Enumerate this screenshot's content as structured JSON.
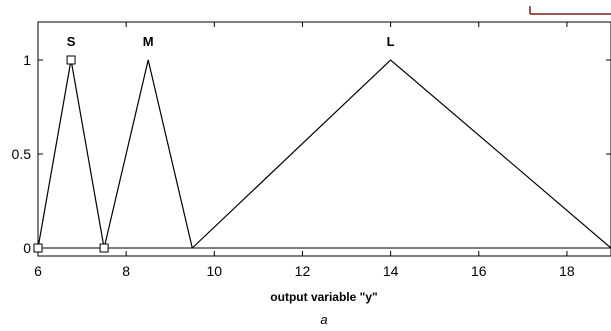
{
  "chart_data": {
    "type": "line",
    "xlabel": "output variable \"y\"",
    "ylabel": "",
    "xlim": [
      6,
      19
    ],
    "ylim": [
      -0.03,
      1.18
    ],
    "x_ticks": [
      6,
      8,
      10,
      12,
      14,
      16,
      18
    ],
    "y_ticks": [
      0,
      0.5,
      1
    ],
    "grid": false,
    "series": [
      {
        "name": "S",
        "x": [
          6,
          6.75,
          7.5
        ],
        "y": [
          0,
          1,
          0
        ]
      },
      {
        "name": "M",
        "x": [
          7.5,
          8.5,
          9.5
        ],
        "y": [
          0,
          1,
          0
        ]
      },
      {
        "name": "L",
        "x": [
          9.5,
          14,
          19
        ],
        "y": [
          0,
          1,
          0
        ]
      }
    ],
    "selected_points": [
      {
        "x": 6.75,
        "y": 1
      },
      {
        "x": 7.5,
        "y": 0
      },
      {
        "x": 6,
        "y": 0
      }
    ],
    "annotations": [],
    "line_color": "#000000",
    "accent_color": "#7a1f1f"
  },
  "caption": "a"
}
